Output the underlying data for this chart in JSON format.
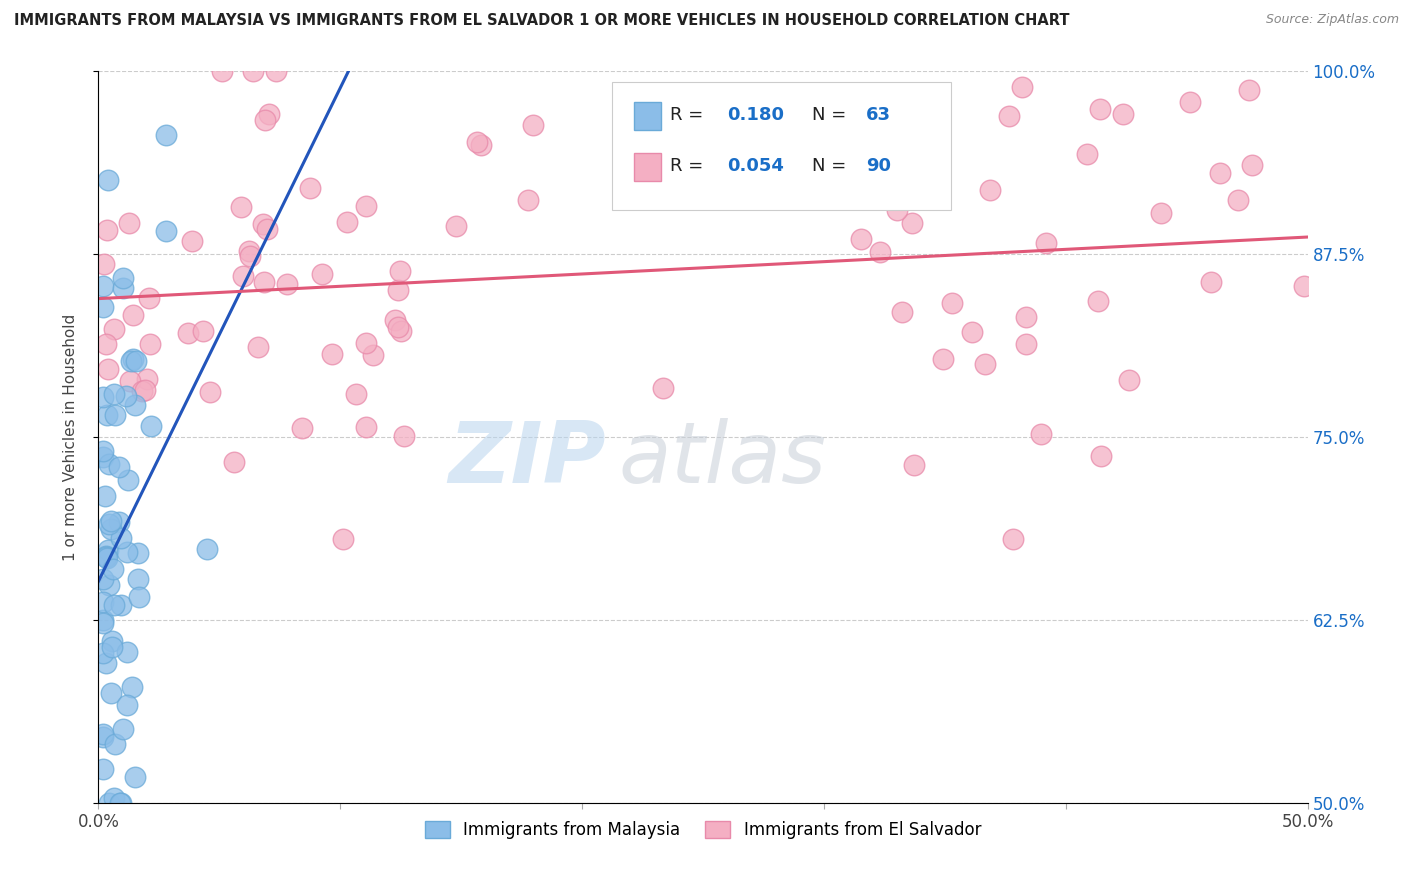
{
  "title": "IMMIGRANTS FROM MALAYSIA VS IMMIGRANTS FROM EL SALVADOR 1 OR MORE VEHICLES IN HOUSEHOLD CORRELATION CHART",
  "source": "Source: ZipAtlas.com",
  "ylabel": "1 or more Vehicles in Household",
  "xlim": [
    0.0,
    0.5
  ],
  "ylim": [
    0.5,
    1.0
  ],
  "yticks": [
    0.5,
    0.625,
    0.75,
    0.875,
    1.0
  ],
  "ytick_labels": [
    "50.0%",
    "62.5%",
    "75.0%",
    "87.5%",
    "100.0%"
  ],
  "xticks": [
    0.0,
    0.1,
    0.2,
    0.3,
    0.4,
    0.5
  ],
  "xtick_labels": [
    "0.0%",
    "",
    "",
    "",
    "",
    "50.0%"
  ],
  "malaysia_color": "#8bbde8",
  "malaysia_edge": "#6aaad8",
  "elsalvador_color": "#f4afc3",
  "elsalvador_edge": "#e88aaa",
  "malaysia_R": 0.18,
  "malaysia_N": 63,
  "elsalvador_R": 0.054,
  "elsalvador_N": 90,
  "line_malaysia_color": "#2255bb",
  "line_elsalvador_color": "#e05878",
  "watermark_zip": "ZIP",
  "watermark_atlas": "atlas",
  "background_color": "#ffffff",
  "grid_color": "#cccccc",
  "legend_color": "#1a6ec7",
  "title_color": "#222222",
  "source_color": "#888888"
}
